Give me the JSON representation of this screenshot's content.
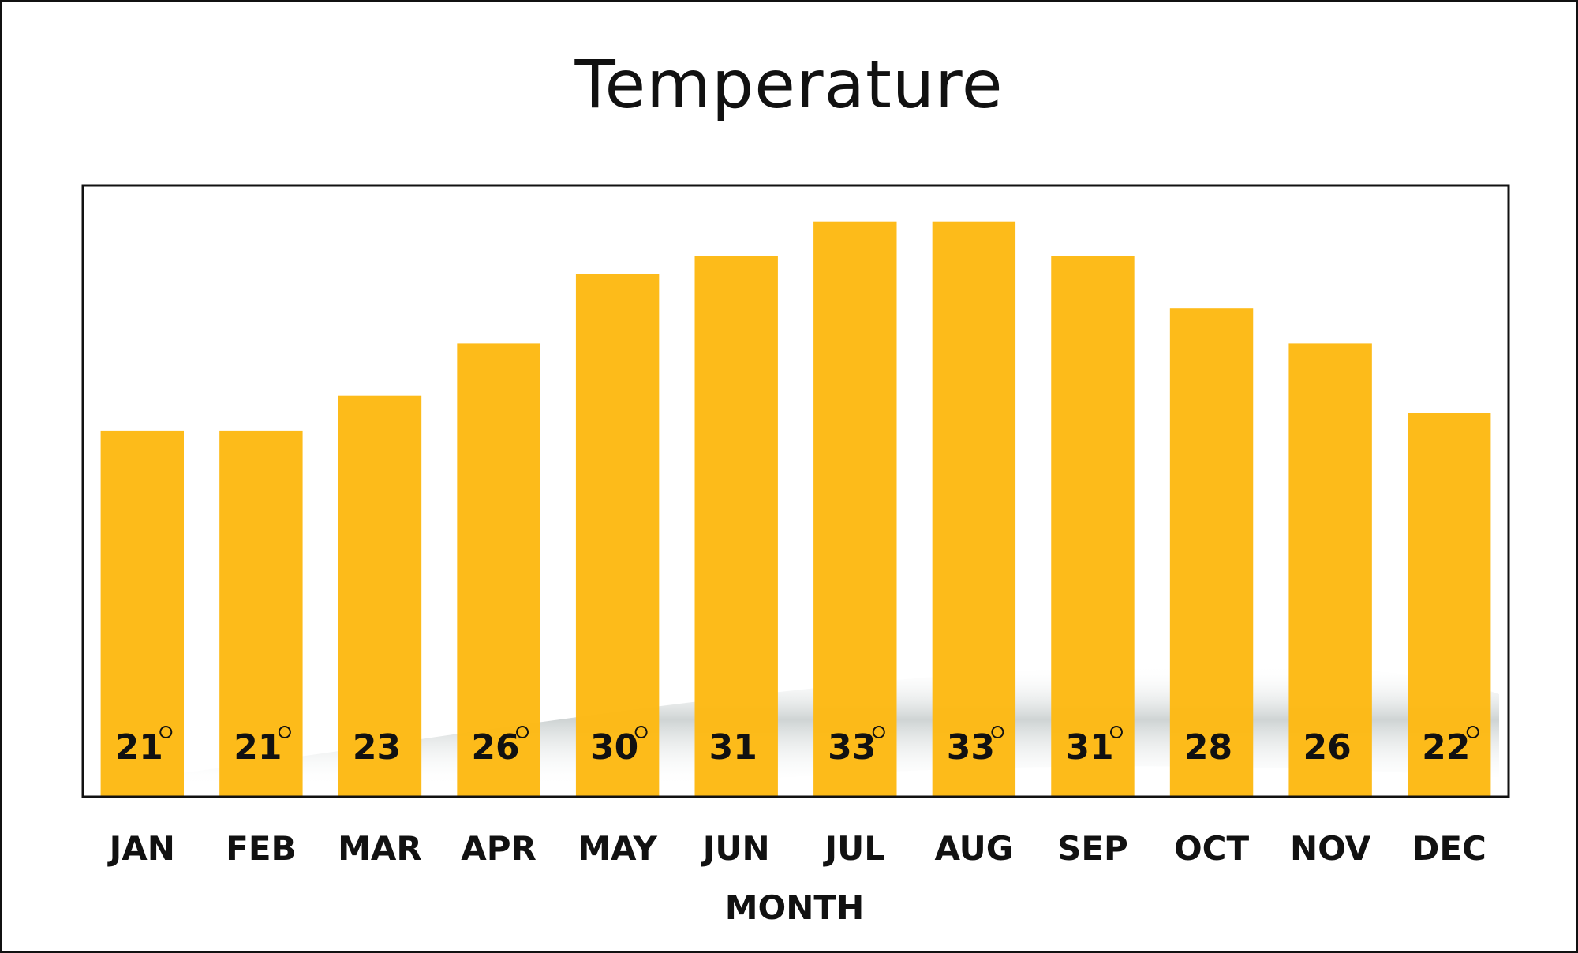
{
  "chart_data": {
    "type": "bar",
    "title": "Temperature",
    "xlabel": "MONTH",
    "ylabel": "",
    "categories": [
      "JAN",
      "FEB",
      "MAR",
      "APR",
      "MAY",
      "JUN",
      "JUL",
      "AUG",
      "SEP",
      "OCT",
      "NOV",
      "DEC"
    ],
    "values": [
      21,
      21,
      23,
      26,
      30,
      31,
      33,
      33,
      31,
      28,
      26,
      22
    ],
    "data_labels": [
      "21",
      "21",
      "23",
      "26",
      "30",
      "31",
      "33",
      "33",
      "31",
      "28",
      "26",
      "22"
    ],
    "degree_marked": [
      true,
      true,
      false,
      true,
      true,
      false,
      true,
      true,
      true,
      false,
      false,
      true
    ],
    "ylim": [
      0,
      35
    ],
    "grid": false,
    "legend": "none",
    "bar_color": "#FDB913",
    "shadow_color": "#C9CFCF"
  }
}
